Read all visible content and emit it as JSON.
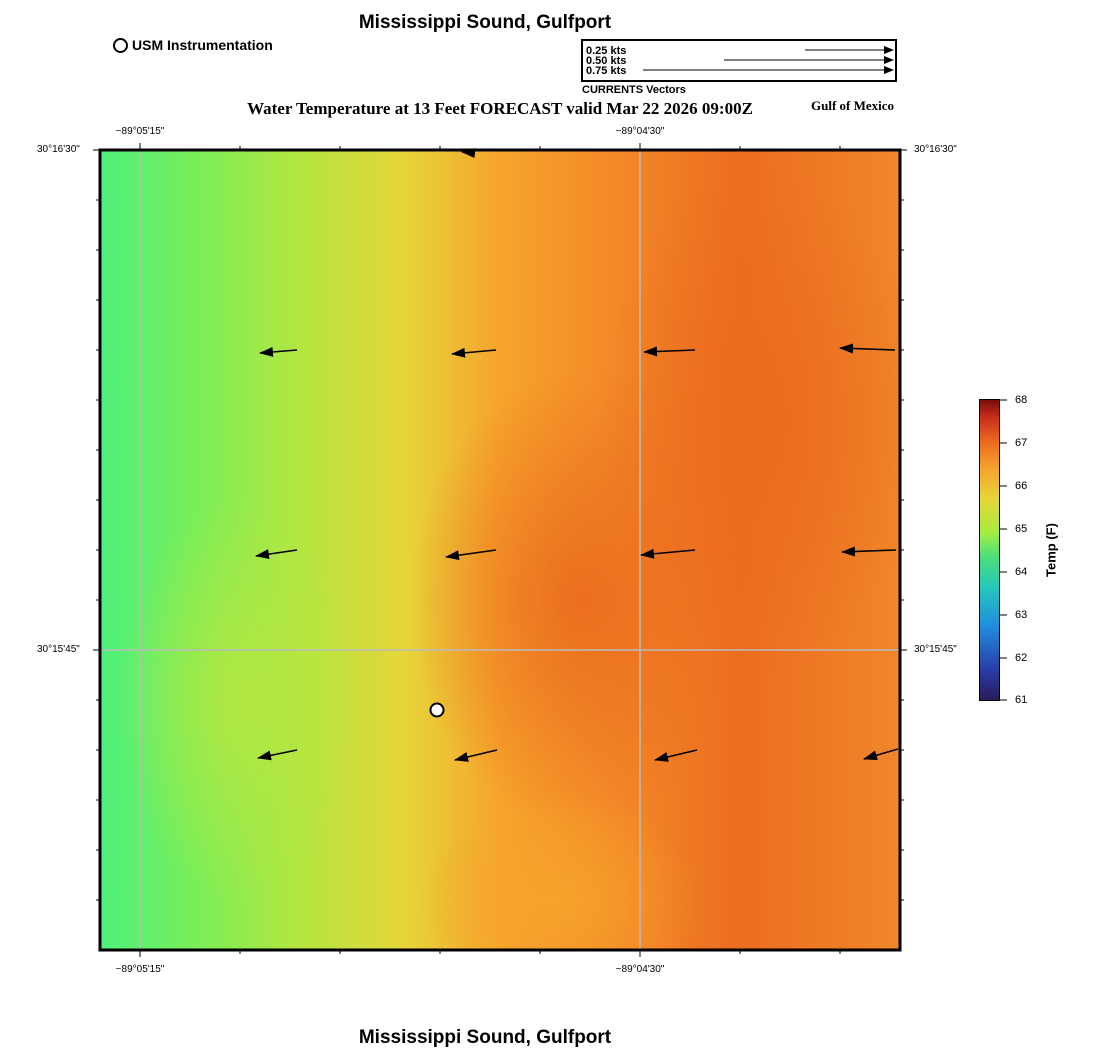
{
  "header": {
    "title": "Mississippi Sound, Gulfport",
    "usm_label": "USM Instrumentation",
    "subtitle": "Water Temperature at 13 Feet FORECAST valid Mar 22 2026 09:00Z",
    "region": "Gulf of Mexico",
    "footer_title": "Mississippi Sound, Gulfport"
  },
  "vector_legend": {
    "caption": "CURRENTS Vectors",
    "scales": [
      "0.25 kts",
      "0.50 kts",
      "0.75 kts"
    ]
  },
  "axes": {
    "lon_ticks": [
      "−89°05'15\"",
      "−89°04'30\""
    ],
    "lat_ticks": [
      "30°16'30\"",
      "30°15'45\""
    ]
  },
  "colorbar": {
    "title": "Temp (F)",
    "ticks": [
      "68",
      "67",
      "66",
      "65",
      "64",
      "63",
      "62",
      "61"
    ]
  },
  "colors": {
    "cool": "#4ef07e",
    "mid": "#e6d53a",
    "warm": "#ec6d20",
    "grid": "#bbbbbb",
    "marker": "#ffffff"
  }
}
